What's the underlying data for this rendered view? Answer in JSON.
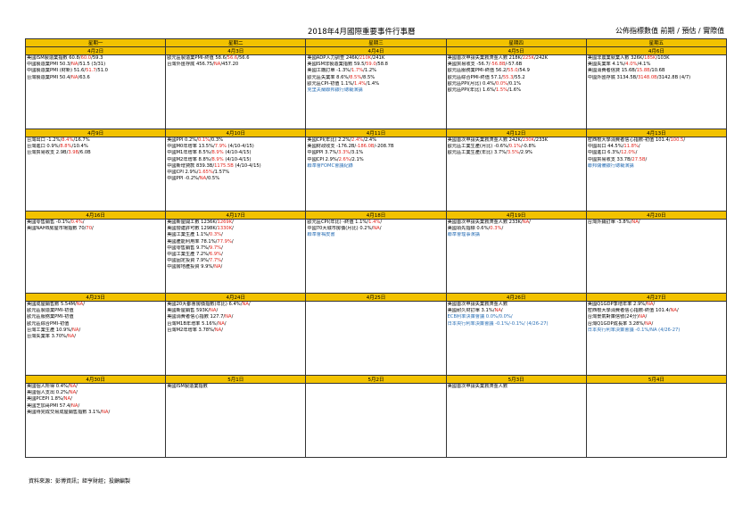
{
  "header": {
    "title": "2018年4月國際重要事件行事曆",
    "legend": "公佈指標數值  前期 / 預估 / 實際值"
  },
  "weekdays": [
    "星期一",
    "星期二",
    "星期三",
    "星期四",
    "星期五"
  ],
  "weeks": [
    {
      "dates": [
        "4月2日",
        "4月3日",
        "4月4日",
        "4月5日",
        "4月6日"
      ],
      "cells": [
        [
          {
            "t": "美國ISM製造業指數 60.8/",
            "r": "60.0",
            "t2": "/59.3"
          },
          {
            "t": "中國製造業PMI 50.3/",
            "r": "NA",
            "t2": "/51.5 (3/31)"
          },
          {
            "t": "中國製造業PMI (財新) 51.6/",
            "r": "51.7",
            "t2": "/51.0"
          },
          {
            "t": "台灣製造業PMI 50.4/",
            "r": "NA",
            "t2": "/63.6"
          }
        ],
        [
          {
            "t": "歐元區製造業PMI-終值 58.6/",
            "r": "56.6",
            "t2": "/56.6"
          },
          {
            "t": "台灣外匯存底 456.75/",
            "r": "NA",
            "t2": "/457.20"
          }
        ],
        [
          {
            "t": "美國ADP人力調查 246K/",
            "r": "210K",
            "t2": "/241K"
          },
          {
            "t": "美國ISM非製造業指數 59.5/",
            "r": "59.0",
            "t2": "/58.8"
          },
          {
            "t": "美國工廠訂單 -1.3%/",
            "r": "1.7%",
            "t2": "/1.2%"
          },
          {
            "t": "歐元區失業率 8.6%/",
            "r": "8.5%",
            "t2": "/8.5%"
          },
          {
            "t": "歐元區CPI-初值 1.1%/",
            "r": "1.4%",
            "t2": "/1.4%"
          },
          {
            "t": "克里夫蘭聯邦銀行總裁演講",
            "blue": true
          }
        ],
        [
          {
            "t": "美國首次申請失業救濟金人數 218K/",
            "r": "225K",
            "t2": "/242K"
          },
          {
            "t": "美國貿易收支 -56.7/",
            "r": "-56.8B",
            "t2": "/-57.6B"
          },
          {
            "t": "歐元區服務業PMI-終值 56.2/",
            "r": "55.0",
            "t2": "/54.9"
          },
          {
            "t": "歐元區綜合PMI-終值 57.1/",
            "r": "55.3",
            "t2": "/55.2"
          },
          {
            "t": "歐元區PPI(月比) 0.4%/",
            "r": "0.0%",
            "t2": "/0.1%"
          },
          {
            "t": "歐元區PPI(年比) 1.6%/",
            "r": "1.5%",
            "t2": "/1.6%"
          }
        ],
        [
          {
            "t": "美國非農業就業人數 326K/",
            "r": "185K",
            "t2": "/103K"
          },
          {
            "t": "美國失業率 4.1%/",
            "r": "4.0%",
            "t2": "/4.1%"
          },
          {
            "t": "美國消費者信貸 15.6B/",
            "r": "15.8B",
            "t2": "/10.6B"
          },
          {
            "t": "中國外匯存底 3134.5B/",
            "r": "3148.0B",
            "t2": "/3142.8B (4/7)"
          }
        ]
      ]
    },
    {
      "dates": [
        "4月9日",
        "4月10日",
        "4月11日",
        "4月12日",
        "4月13日"
      ],
      "cells": [
        [
          {
            "t": "台灣出口 -1.2%/",
            "r": "8.4%",
            "t2": "/16.7%"
          },
          {
            "t": "台灣進口 0.9%/",
            "r": "8.8%",
            "t2": "/10.4%"
          },
          {
            "t": "台灣貿易收支 2.9B/",
            "r": "3.9B",
            "t2": "/6.0B"
          }
        ],
        [
          {
            "t": "美國PPI 0.2%/",
            "r": "0.1%",
            "t2": "/0.3%"
          },
          {
            "t": "中國M0年增率 13.5%/",
            "r": "7.9%",
            "t2": " (4/10-4/15)"
          },
          {
            "t": "中國M1年增率 8.5%/",
            "r": "8.9%",
            "t2": " (4/10-4/15)"
          },
          {
            "t": "中國M2年增率 8.8%/",
            "r": "8.9%",
            "t2": " (4/10-4/15)"
          },
          {
            "t": "中國新增貸款 839.3B/",
            "r": "1175.5B",
            "t2": " (4/10-4/15)"
          },
          {
            "t": "中國CPI 2.9%/",
            "r": "1.65%",
            "t2": "/1.57%"
          },
          {
            "t": "中國PPI -0.2%/",
            "r": "NA",
            "t2": "/0.5%"
          }
        ],
        [
          {
            "t": "美國CPI(年比) 2.2%/",
            "r": "2.4%",
            "t2": "/2.4%"
          },
          {
            "t": "美國財政收支 -176.2B/",
            "r": "-186.0B",
            "t2": "/-208.7B"
          },
          {
            "t": "中國PPI 3.7%/",
            "r": "3.3%",
            "t2": "/3.1%"
          },
          {
            "t": "中國CPI 2.9%/",
            "r": "2.6%",
            "t2": "/2.1%"
          },
          {
            "t": "聯準會FOMC會議紀錄",
            "blue": true
          }
        ],
        [
          {
            "t": "美國首次申請失業救濟金人數 242K/",
            "r": "230K",
            "t2": "/233K"
          },
          {
            "t": "歐元區工業生產(月比) -0.6%/",
            "r": "0.1%",
            "t2": "/-0.8%"
          },
          {
            "t": "歐元區工業生產(年比) 3.7%/",
            "r": "3.5%",
            "t2": "/2.9%"
          }
        ],
        [
          {
            "t": "密西根大學消費者信心指數-初值 101.4/",
            "r": "100.5",
            "t2": "/"
          },
          {
            "t": "中國出口 44.5%/",
            "r": "11.8%",
            "t2": "/"
          },
          {
            "t": "中國進口 6.3%/",
            "r": "12.0%",
            "t2": "/"
          },
          {
            "t": "中國貿易收支 33.7B/",
            "r": "27.5B",
            "t2": "/"
          },
          {
            "t": "聯邦儲備銀行總裁演講",
            "blue": true
          }
        ]
      ]
    },
    {
      "dates": [
        "4月16日",
        "4月17日",
        "4月18日",
        "4月19日",
        "4月20日"
      ],
      "cells": [
        [
          {
            "t": "美國零售銷售 -0.1%/",
            "r": "0.4%",
            "t2": "/"
          },
          {
            "t": "美國NAHB房屋市場指數 70/",
            "r": "70",
            "t2": "/"
          }
        ],
        [
          {
            "t": "美國新屋開工數 1236K/",
            "r": "1269K",
            "t2": "/"
          },
          {
            "t": "美國營建許可數 1298K/",
            "r": "1330K",
            "t2": "/"
          },
          {
            "t": "美國工業生產 1.1%/",
            "r": "0.3%",
            "t2": "/"
          },
          {
            "t": "美國產能利用率 78.1%/",
            "r": "77.9%",
            "t2": "/"
          },
          {
            "t": "中國零售銷售 9.7%/",
            "r": "9.7%",
            "t2": "/"
          },
          {
            "t": "中國工業生產 7.2%/",
            "r": "6.9%",
            "t2": "/"
          },
          {
            "t": "中國固定投資 7.9%/",
            "r": "7.7%",
            "t2": "/"
          },
          {
            "t": "中國房地產投資 9.9%/",
            "r": "NA",
            "t2": "/"
          }
        ],
        [
          {
            "t": "歐元區CPI(年比) -終值 1.1%/",
            "r": "1.4%",
            "t2": "/"
          },
          {
            "t": "中國70大城市房價(月比) 0.2%/",
            "r": "NA",
            "t2": "/"
          },
          {
            "t": "聯準會褐皮書",
            "blue": true
          }
        ],
        [
          {
            "t": "美國首次申請失業救濟金人數 233K/",
            "r": "NA",
            "t2": "/"
          },
          {
            "t": "美國領先指標 0.6%/",
            "r": "0.3%",
            "t2": "/"
          },
          {
            "t": "聯準會理事演講",
            "blue": true
          }
        ],
        [
          {
            "t": "台灣外銷訂單 -3.8%/",
            "r": "NA",
            "t2": "/"
          }
        ]
      ]
    },
    {
      "dates": [
        "4月23日",
        "4月24日",
        "4月25日",
        "4月26日",
        "4月27日"
      ],
      "cells": [
        [
          {
            "t": "美國成屋銷售數 5.54M/",
            "r": "NA",
            "t2": "/"
          },
          {
            "t": "歐元區製造業PMI-初值",
            "r": "",
            "t2": ""
          },
          {
            "t": "歐元區服務業PMI-初值",
            "r": "",
            "t2": ""
          },
          {
            "t": "歐元區綜合PMI-初值",
            "r": "",
            "t2": ""
          },
          {
            "t": "台灣工業生產 10.9%/",
            "r": "NA",
            "t2": "/"
          },
          {
            "t": "台灣失業率 3.70%/",
            "r": "NA",
            "t2": "/"
          }
        ],
        [
          {
            "t": "美國20大都會房價指數(年比) 6.4%/",
            "r": "NA",
            "t2": "/"
          },
          {
            "t": "美國新屋銷售 593K/",
            "r": "NA",
            "t2": "/"
          },
          {
            "t": "美國消費者信心指數 127.7/",
            "r": "NA",
            "t2": "/"
          },
          {
            "t": "台灣M1B年增率 5.16%/",
            "r": "NA",
            "t2": "/"
          },
          {
            "t": "台灣M2年增率 3.78%/",
            "r": "NA",
            "t2": "/"
          }
        ],
        [],
        [
          {
            "t": "美國首次申請失業救濟金人數",
            "r": "",
            "t2": ""
          },
          {
            "t": "美國耐久財訂單 3.1%/",
            "r": "NA",
            "t2": "/"
          },
          {
            "t": "ECB利率決策會議 0.0%/",
            "r": "0.0%",
            "t2": "/",
            "blue": true
          },
          {
            "t": "日本央行利率決策會議 -0.1%/",
            "r": "-0.1%",
            "t2": "/ (4/26-27)",
            "blue": true
          }
        ],
        [
          {
            "t": "美國Q1GDP季增年率 2.9%/",
            "r": "NA",
            "t2": "/"
          },
          {
            "t": "密西根大學消費者信心指數-終值 101.4/",
            "r": "NA",
            "t2": "/"
          },
          {
            "t": "台灣景氣對策信號(24分)",
            "r": "NA",
            "t2": "/"
          },
          {
            "t": "台灣Q1GDP成長率 3.28%/",
            "r": "NA",
            "t2": "/"
          },
          {
            "t": "日本央行利率決策會議 -0.1%/",
            "r": "NA",
            "t2": " (4/26-27)",
            "blue": true
          }
        ]
      ]
    },
    {
      "dates": [
        "4月30日",
        "5月1日",
        "5月2日",
        "5月3日",
        "5月4日"
      ],
      "cells": [
        [
          {
            "t": "美國個人所得 0.4%/",
            "r": "NA",
            "t2": "/"
          },
          {
            "t": "美國個人支出 0.2%/",
            "r": "NA",
            "t2": "/"
          },
          {
            "t": "美國PCEPI 1.8%/",
            "r": "NA",
            "t2": "/"
          },
          {
            "t": "美國芝加哥PMI 57.4/",
            "r": "NA",
            "t2": "/"
          },
          {
            "t": "美國待完成交易成屋銷售指數 3.1%/",
            "r": "NA",
            "t2": "/"
          }
        ],
        [
          {
            "t": "美國ISM製造業指數",
            "r": "",
            "t2": ""
          }
        ],
        [],
        [
          {
            "t": "美國首次申請失業救濟金人數",
            "r": "",
            "t2": ""
          }
        ],
        []
      ]
    }
  ],
  "footer": "資料來源：彭博資訊；鉅亨財經；投顧編製"
}
